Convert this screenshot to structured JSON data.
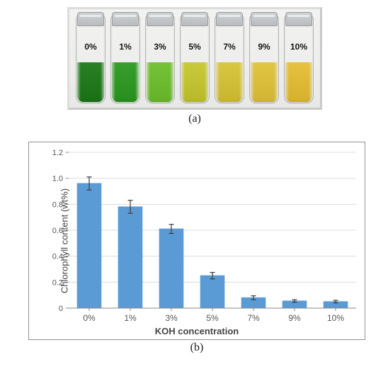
{
  "panel_a": {
    "caption": "(a)",
    "vials": [
      {
        "label": "0%",
        "liquid_color": "#1f7a1a",
        "liquid_height_pct": 45
      },
      {
        "label": "1%",
        "liquid_color": "#2e9a22",
        "liquid_height_pct": 45
      },
      {
        "label": "3%",
        "liquid_color": "#6fbf2e",
        "liquid_height_pct": 45
      },
      {
        "label": "5%",
        "liquid_color": "#c6c832",
        "liquid_height_pct": 45
      },
      {
        "label": "7%",
        "liquid_color": "#d7c438",
        "liquid_height_pct": 45
      },
      {
        "label": "9%",
        "liquid_color": "#e0c33a",
        "liquid_height_pct": 45
      },
      {
        "label": "10%",
        "liquid_color": "#e6be36",
        "liquid_height_pct": 45
      }
    ]
  },
  "panel_b": {
    "caption": "(b)",
    "chart": {
      "type": "bar",
      "x_label": "KOH concentration",
      "y_label": "Chlorophyll content (wt%)",
      "categories": [
        "0%",
        "1%",
        "3%",
        "5%",
        "7%",
        "9%",
        "10%"
      ],
      "values": [
        0.96,
        0.78,
        0.61,
        0.25,
        0.08,
        0.055,
        0.05
      ],
      "errors": [
        0.05,
        0.05,
        0.035,
        0.025,
        0.015,
        0.01,
        0.01
      ],
      "ylim": [
        0,
        1.2
      ],
      "ytick_step": 0.2,
      "bar_color": "#5b9bd5",
      "error_bar_color": "#3a3a3a",
      "grid_color": "#dcdcdc",
      "background_color": "#ffffff",
      "frame_border_color": "#909090",
      "axis_text_color": "#555555",
      "axis_label_color": "#444444",
      "bar_width_ratio": 0.58,
      "title_fontsize": 13,
      "tick_fontsize": 11,
      "x_tick_fontsize": 12
    }
  }
}
